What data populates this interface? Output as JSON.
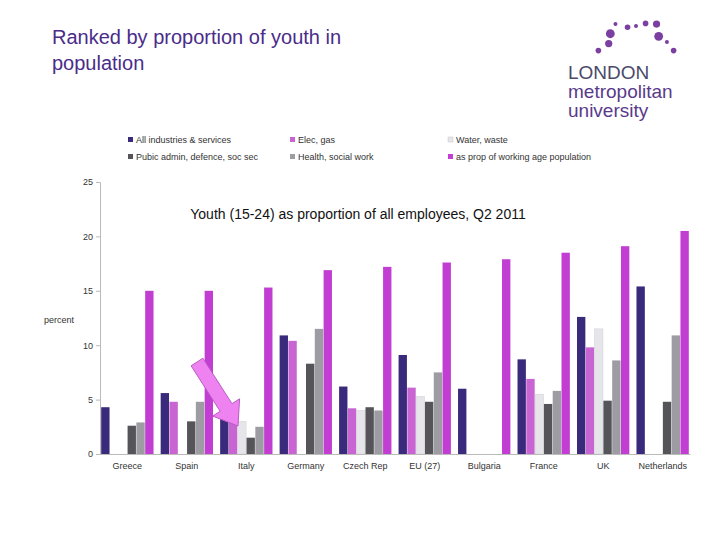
{
  "page": {
    "title_lines": [
      "Ranked by proportion of youth in",
      "population"
    ],
    "logo": [
      "LONDON",
      "metropolitan",
      "university"
    ]
  },
  "chart_data": {
    "type": "bar",
    "title": "Youth (15-24) as proportion of all employees, Q2 2011",
    "y_label": "percent",
    "categories": [
      "Greece",
      "Spain",
      "Italy",
      "Germany",
      "Czech Rep",
      "EU (27)",
      "Bulgaria",
      "France",
      "UK",
      "Netherlands"
    ],
    "series": [
      {
        "name": "All industries & services",
        "color": "#3a2a7c",
        "values": [
          4.3,
          5.6,
          3.4,
          10.9,
          6.2,
          9.1,
          6.0,
          8.7,
          12.6,
          15.4
        ]
      },
      {
        "name": "Elec, gas",
        "color": "#c865d2",
        "values": [
          null,
          4.8,
          3.0,
          10.4,
          4.2,
          6.1,
          null,
          6.9,
          9.8,
          null
        ]
      },
      {
        "name": "Water, waste",
        "color": "#e6e6ea",
        "values": [
          null,
          null,
          3.0,
          null,
          4.0,
          5.3,
          null,
          5.5,
          11.5,
          null
        ]
      },
      {
        "name": "Pubic admin, defence, soc sec",
        "color": "#555559",
        "values": [
          2.6,
          3.0,
          1.5,
          8.3,
          4.3,
          4.8,
          null,
          4.6,
          4.9,
          4.8
        ]
      },
      {
        "name": "Health, social work",
        "color": "#9c9ca2",
        "values": [
          2.9,
          4.8,
          2.5,
          11.5,
          4.0,
          7.5,
          null,
          5.8,
          8.6,
          10.9
        ]
      },
      {
        "name": "as prop of working age population",
        "color": "#c23ed2",
        "values": [
          15.0,
          15.0,
          15.3,
          16.9,
          17.2,
          17.6,
          17.9,
          18.5,
          19.1,
          20.5
        ]
      }
    ],
    "ylim": [
      0,
      25
    ],
    "yticks": [
      0,
      5,
      10,
      15,
      20,
      25
    ],
    "grid": false,
    "legend": "top"
  }
}
